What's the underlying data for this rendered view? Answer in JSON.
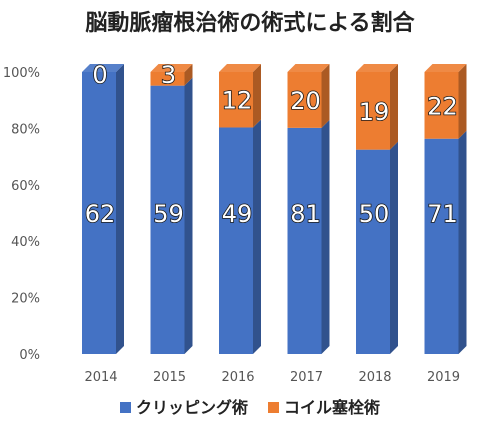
{
  "chart_data": {
    "type": "bar",
    "stacked": true,
    "percent": true,
    "title": "脳動脈瘤根治術の術式による割合",
    "categories": [
      "2014",
      "2015",
      "2016",
      "2017",
      "2018",
      "2019"
    ],
    "series": [
      {
        "name": "クリッピング術",
        "values": [
          62,
          59,
          49,
          81,
          50,
          71
        ],
        "color": "#4472c4"
      },
      {
        "name": "コイル塞栓術",
        "values": [
          0,
          3,
          12,
          20,
          19,
          22
        ],
        "color": "#ed7d31"
      }
    ],
    "y_ticks": [
      "0%",
      "20%",
      "40%",
      "60%",
      "80%",
      "100%"
    ],
    "ylim": [
      0,
      100
    ],
    "legend_position": "bottom",
    "grid": false
  }
}
